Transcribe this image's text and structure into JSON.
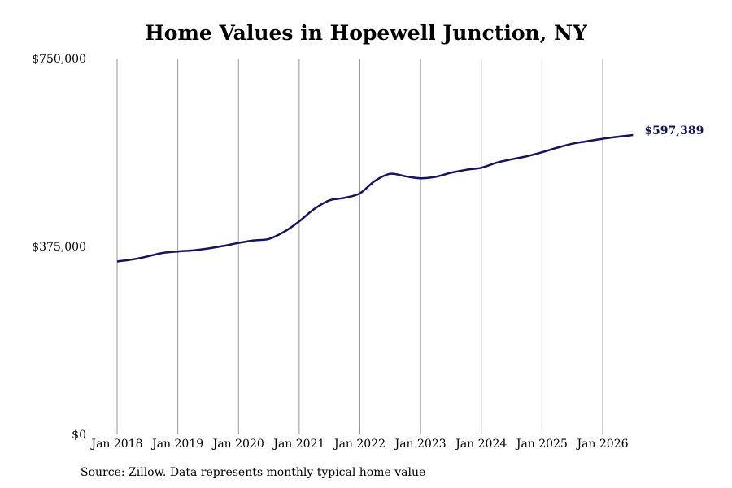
{
  "chart_data": {
    "type": "line",
    "title": "Home Values in Hopewell Junction, NY",
    "source_note": "Source: Zillow. Data represents monthly typical home value",
    "ylim": [
      0,
      750000
    ],
    "y_ticks": [
      {
        "value": 750000,
        "label": "$750,000"
      },
      {
        "value": 375000,
        "label": "$375,000"
      },
      {
        "value": 0,
        "label": "$0"
      }
    ],
    "x_ticks": [
      {
        "value": 2018.0,
        "label": "Jan 2018"
      },
      {
        "value": 2019.0,
        "label": "Jan 2019"
      },
      {
        "value": 2020.0,
        "label": "Jan 2020"
      },
      {
        "value": 2021.0,
        "label": "Jan 2021"
      },
      {
        "value": 2022.0,
        "label": "Jan 2022"
      },
      {
        "value": 2023.0,
        "label": "Jan 2023"
      },
      {
        "value": 2024.0,
        "label": "Jan 2024"
      },
      {
        "value": 2025.0,
        "label": "Jan 2025"
      },
      {
        "value": 2026.0,
        "label": "Jan 2026"
      }
    ],
    "xlim": [
      2018.0,
      2026.5
    ],
    "grid": {
      "vertical": true,
      "horizontal": false
    },
    "line_color": "#13135e",
    "end_label": "$597,389",
    "series": [
      {
        "x": [
          2018.0,
          2018.25,
          2018.5,
          2018.75,
          2019.0,
          2019.25,
          2019.5,
          2019.75,
          2020.0,
          2020.25,
          2020.5,
          2020.75,
          2021.0,
          2021.25,
          2021.5,
          2021.75,
          2022.0,
          2022.25,
          2022.5,
          2022.75,
          2023.0,
          2023.25,
          2023.5,
          2023.75,
          2024.0,
          2024.25,
          2024.5,
          2024.75,
          2025.0,
          2025.25,
          2025.5,
          2025.75,
          2026.0,
          2026.25,
          2026.5
        ],
        "values": [
          345000,
          349000,
          355000,
          362000,
          365000,
          367000,
          371000,
          376000,
          382000,
          387000,
          390000,
          404000,
          425000,
          450000,
          467000,
          472000,
          481000,
          506000,
          520000,
          515000,
          511000,
          514000,
          522000,
          528000,
          532000,
          542000,
          549000,
          555000,
          563000,
          572000,
          580000,
          585000,
          590000,
          594000,
          597389
        ]
      }
    ]
  }
}
